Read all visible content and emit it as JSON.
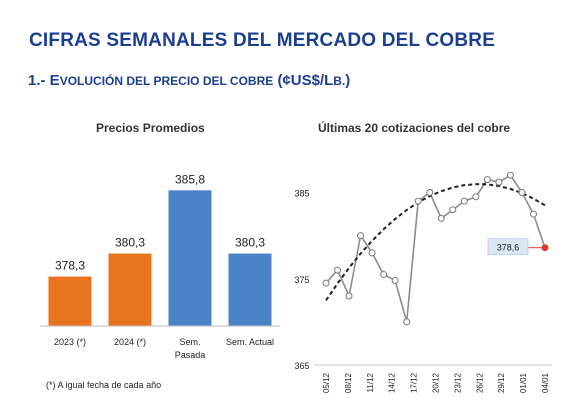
{
  "header": {
    "title": "CIFRAS SEMANALES DEL MERCADO DEL COBRE",
    "subtitle_prefix": "1.- E",
    "subtitle_small": "VOLUCIÓN DEL PRECIO DEL COBRE",
    "subtitle_unit": " (¢US$/L",
    "subtitle_unit_small": "B.",
    "subtitle_end": ")"
  },
  "footnote": "(*) A igual fecha de cada año",
  "colors": {
    "title": "#1b3f8f",
    "orange": "#e8731e",
    "blue": "#4a82c8",
    "line": "#8c8c8c",
    "trend": "#222222",
    "last_point": "#d93c2c",
    "last_label_bg": "#dbe7f5"
  },
  "chart_data": [
    {
      "type": "bar",
      "title": "Precios Promedios",
      "categories": [
        "2023 (*)",
        "2024 (*)",
        "Sem.\nPasada",
        "Sem. Actual"
      ],
      "values": [
        378.3,
        380.3,
        385.8,
        380.3
      ],
      "value_labels": [
        "378,3",
        "380,3",
        "385,8",
        "380,3"
      ],
      "bar_colors": [
        "orange",
        "orange",
        "blue",
        "blue"
      ],
      "ylim": [
        374.0,
        386.0
      ],
      "grid": false,
      "legend": "none"
    },
    {
      "type": "line",
      "title": "Últimas 20 cotizaciones del cobre",
      "x_tick_labels": [
        "05/12",
        "08/12",
        "11/12",
        "14/12",
        "17/12",
        "20/12",
        "23/12",
        "26/12",
        "29/12",
        "01/01",
        "04/01"
      ],
      "x": [
        0,
        1,
        2,
        3,
        4,
        5,
        6,
        7,
        8,
        9,
        10,
        11,
        12,
        13,
        14,
        15,
        16,
        17,
        18,
        19
      ],
      "values": [
        374.5,
        376.0,
        373.0,
        380.0,
        378.0,
        375.5,
        374.8,
        370.0,
        384.0,
        385.0,
        382.0,
        383.0,
        384.0,
        384.5,
        386.5,
        386.2,
        387.0,
        385.0,
        382.5,
        378.6
      ],
      "ylim": [
        365,
        389
      ],
      "yticks": [
        365,
        375,
        385
      ],
      "trendline": "polynomial",
      "trend_values": [
        372.5,
        374.45,
        376.26,
        377.91,
        379.4,
        380.74,
        381.93,
        382.97,
        383.85,
        384.58,
        385.15,
        385.58,
        385.85,
        385.97,
        385.94,
        385.75,
        385.42,
        384.93,
        384.29,
        383.51
      ],
      "last_label": "378,6",
      "grid": false,
      "legend": "none"
    }
  ]
}
